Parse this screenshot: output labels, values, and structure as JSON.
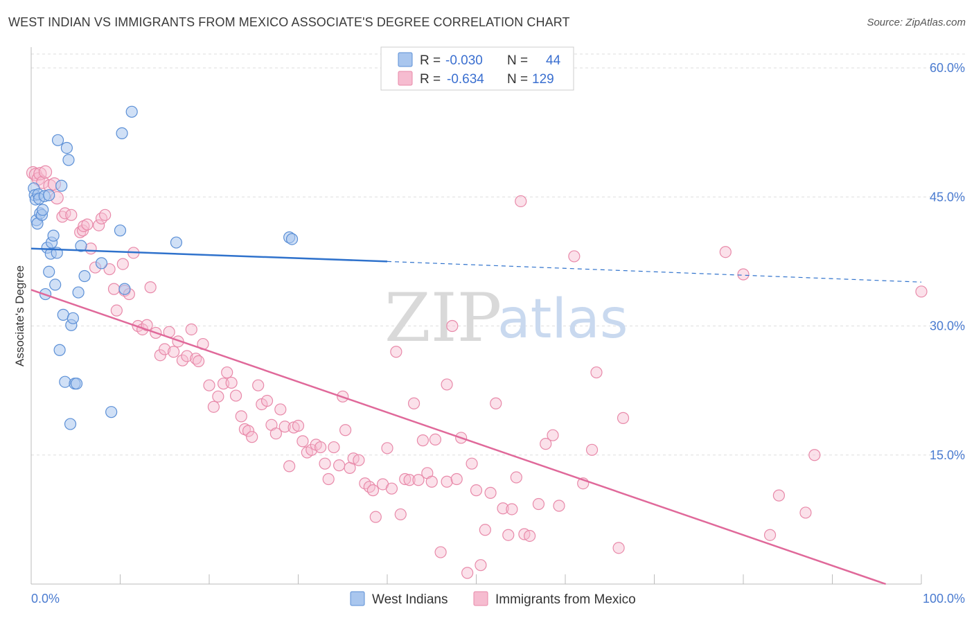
{
  "header": {
    "title": "WEST INDIAN VS IMMIGRANTS FROM MEXICO ASSOCIATE'S DEGREE CORRELATION CHART",
    "source": "Source: ZipAtlas.com"
  },
  "watermark": {
    "zip": "ZIP",
    "atlas": "atlas"
  },
  "colors": {
    "blue_fill": "#a9c6ee",
    "blue_stroke": "#5b8fd6",
    "blue_line": "#2f72cc",
    "pink_fill": "#f6bcd0",
    "pink_stroke": "#e889a9",
    "pink_line": "#e0699a",
    "grid": "#dddddd",
    "axis_text": "#4a7bd0"
  },
  "legend": {
    "rows": [
      {
        "r_label": "R = ",
        "r_value": "-0.030",
        "n_label": "N = ",
        "n_value": "44"
      },
      {
        "r_label": "R = ",
        "r_value": "-0.634",
        "n_label": "N = ",
        "n_value": "129"
      }
    ]
  },
  "bottom_legend": {
    "items": [
      {
        "label": "West Indians"
      },
      {
        "label": "Immigrants from Mexico"
      }
    ]
  },
  "chart_data": {
    "type": "scatter",
    "title": "WEST INDIAN VS IMMIGRANTS FROM MEXICO ASSOCIATE'S DEGREE CORRELATION CHART",
    "xlabel": "",
    "ylabel": "Associate's Degree",
    "xlim": [
      0,
      100
    ],
    "ylim": [
      0,
      63
    ],
    "x_tick_labels": {
      "left": "0.0%",
      "right": "100.0%"
    },
    "y_ticks": [
      {
        "value": 60,
        "label": "60.0%"
      },
      {
        "value": 45,
        "label": "45.0%"
      },
      {
        "value": 30,
        "label": "30.0%"
      },
      {
        "value": 15,
        "label": "15.0%"
      }
    ],
    "series": [
      {
        "name": "West Indians",
        "R": -0.03,
        "N": 44,
        "trend": {
          "x0": 0,
          "y0": 39.0,
          "x1": 40,
          "y1": 37.5,
          "dashed_to_x": 100,
          "dashed_to_y": 35.1
        },
        "points": [
          [
            0.3,
            46.0
          ],
          [
            0.4,
            45.2
          ],
          [
            0.5,
            44.7
          ],
          [
            0.6,
            42.3
          ],
          [
            0.7,
            41.9
          ],
          [
            0.8,
            45.3
          ],
          [
            0.9,
            44.8
          ],
          [
            1.0,
            43.1
          ],
          [
            1.2,
            42.9
          ],
          [
            1.3,
            43.5
          ],
          [
            1.5,
            45.1
          ],
          [
            1.6,
            33.7
          ],
          [
            1.8,
            39.1
          ],
          [
            2.0,
            36.3
          ],
          [
            2.2,
            38.4
          ],
          [
            2.3,
            39.7
          ],
          [
            2.5,
            40.5
          ],
          [
            2.7,
            34.8
          ],
          [
            2.9,
            38.5
          ],
          [
            3.0,
            51.6
          ],
          [
            3.2,
            27.2
          ],
          [
            3.4,
            46.3
          ],
          [
            3.6,
            31.3
          ],
          [
            3.8,
            23.5
          ],
          [
            4.0,
            50.7
          ],
          [
            4.2,
            49.3
          ],
          [
            4.4,
            18.6
          ],
          [
            4.5,
            30.1
          ],
          [
            4.7,
            30.9
          ],
          [
            4.9,
            23.3
          ],
          [
            5.1,
            23.3
          ],
          [
            5.3,
            33.9
          ],
          [
            5.6,
            39.3
          ],
          [
            6.0,
            35.8
          ],
          [
            7.9,
            37.3
          ],
          [
            9.0,
            20.0
          ],
          [
            10.0,
            41.1
          ],
          [
            10.2,
            52.4
          ],
          [
            10.5,
            34.3
          ],
          [
            11.3,
            54.9
          ],
          [
            16.3,
            39.7
          ],
          [
            29.0,
            40.3
          ],
          [
            29.3,
            40.1
          ],
          [
            2.0,
            45.2
          ]
        ]
      },
      {
        "name": "Immigrants from Mexico",
        "R": -0.634,
        "N": 129,
        "trend": {
          "x0": 0,
          "y0": 34.2,
          "x1": 96,
          "y1": 0
        },
        "points": [
          [
            0.2,
            47.8
          ],
          [
            0.5,
            47.6
          ],
          [
            0.8,
            47.1
          ],
          [
            1.0,
            47.7
          ],
          [
            1.3,
            46.7
          ],
          [
            1.6,
            47.9
          ],
          [
            2.1,
            46.3
          ],
          [
            2.6,
            46.5
          ],
          [
            2.9,
            44.9
          ],
          [
            3.5,
            42.7
          ],
          [
            3.8,
            43.1
          ],
          [
            4.5,
            42.9
          ],
          [
            5.5,
            40.9
          ],
          [
            5.8,
            41.1
          ],
          [
            5.9,
            41.6
          ],
          [
            6.3,
            41.8
          ],
          [
            6.7,
            39.0
          ],
          [
            7.2,
            36.8
          ],
          [
            7.6,
            41.7
          ],
          [
            7.9,
            42.5
          ],
          [
            8.3,
            42.9
          ],
          [
            8.8,
            36.6
          ],
          [
            9.3,
            34.3
          ],
          [
            9.6,
            31.8
          ],
          [
            10.3,
            37.2
          ],
          [
            10.5,
            34.1
          ],
          [
            11.0,
            33.7
          ],
          [
            11.5,
            38.5
          ],
          [
            12.0,
            30.0
          ],
          [
            12.5,
            29.6
          ],
          [
            13.0,
            30.1
          ],
          [
            13.4,
            34.5
          ],
          [
            14.0,
            29.2
          ],
          [
            14.5,
            26.6
          ],
          [
            15.0,
            27.3
          ],
          [
            15.5,
            29.3
          ],
          [
            16.0,
            27.0
          ],
          [
            16.5,
            28.2
          ],
          [
            17.0,
            26.0
          ],
          [
            17.5,
            26.5
          ],
          [
            18.0,
            29.6
          ],
          [
            18.5,
            26.2
          ],
          [
            18.8,
            25.9
          ],
          [
            19.3,
            27.9
          ],
          [
            20.0,
            23.1
          ],
          [
            20.5,
            20.6
          ],
          [
            21.0,
            21.8
          ],
          [
            21.6,
            23.3
          ],
          [
            22.0,
            24.6
          ],
          [
            22.5,
            23.4
          ],
          [
            23.0,
            21.9
          ],
          [
            23.6,
            19.5
          ],
          [
            24.0,
            18.0
          ],
          [
            24.4,
            17.8
          ],
          [
            24.8,
            17.1
          ],
          [
            25.5,
            23.1
          ],
          [
            25.9,
            20.9
          ],
          [
            26.5,
            21.3
          ],
          [
            27.0,
            18.5
          ],
          [
            27.5,
            17.5
          ],
          [
            28.0,
            20.3
          ],
          [
            28.5,
            18.3
          ],
          [
            29.0,
            13.7
          ],
          [
            29.5,
            18.2
          ],
          [
            30.0,
            18.4
          ],
          [
            30.5,
            16.6
          ],
          [
            31.0,
            15.3
          ],
          [
            31.5,
            15.6
          ],
          [
            32.0,
            16.2
          ],
          [
            32.5,
            15.9
          ],
          [
            33.0,
            14.0
          ],
          [
            33.4,
            12.2
          ],
          [
            34.0,
            15.9
          ],
          [
            34.6,
            13.8
          ],
          [
            35.0,
            21.8
          ],
          [
            35.3,
            17.9
          ],
          [
            35.8,
            13.5
          ],
          [
            36.2,
            14.6
          ],
          [
            36.8,
            14.4
          ],
          [
            37.5,
            11.7
          ],
          [
            38.0,
            11.3
          ],
          [
            38.4,
            10.9
          ],
          [
            38.7,
            7.8
          ],
          [
            39.5,
            11.6
          ],
          [
            40.0,
            15.8
          ],
          [
            40.5,
            11.1
          ],
          [
            41.0,
            27.0
          ],
          [
            41.5,
            8.1
          ],
          [
            42.0,
            12.2
          ],
          [
            42.5,
            12.1
          ],
          [
            43.0,
            21.0
          ],
          [
            43.5,
            12.1
          ],
          [
            44.0,
            16.7
          ],
          [
            44.5,
            12.9
          ],
          [
            45.0,
            11.9
          ],
          [
            45.4,
            16.8
          ],
          [
            46.0,
            3.7
          ],
          [
            46.7,
            11.9
          ],
          [
            46.7,
            23.2
          ],
          [
            47.3,
            30.0
          ],
          [
            47.8,
            12.2
          ],
          [
            48.3,
            17.0
          ],
          [
            49.0,
            1.3
          ],
          [
            49.5,
            14.0
          ],
          [
            50.0,
            10.9
          ],
          [
            50.5,
            2.2
          ],
          [
            51.0,
            6.3
          ],
          [
            51.6,
            10.6
          ],
          [
            52.2,
            21.0
          ],
          [
            53.0,
            8.8
          ],
          [
            53.6,
            5.7
          ],
          [
            54.0,
            8.7
          ],
          [
            54.5,
            12.4
          ],
          [
            55.0,
            44.5
          ],
          [
            55.4,
            5.8
          ],
          [
            56.0,
            5.6
          ],
          [
            57.0,
            9.3
          ],
          [
            57.8,
            16.3
          ],
          [
            58.6,
            17.3
          ],
          [
            59.3,
            9.1
          ],
          [
            61.0,
            38.1
          ],
          [
            62.0,
            11.7
          ],
          [
            63.0,
            15.6
          ],
          [
            63.5,
            24.6
          ],
          [
            66.0,
            4.2
          ],
          [
            66.5,
            19.3
          ],
          [
            78.0,
            38.6
          ],
          [
            80.0,
            36.0
          ],
          [
            83.0,
            5.7
          ],
          [
            84.0,
            10.3
          ],
          [
            87.0,
            8.3
          ],
          [
            88.0,
            15.0
          ],
          [
            100.0,
            34.0
          ]
        ]
      }
    ]
  }
}
